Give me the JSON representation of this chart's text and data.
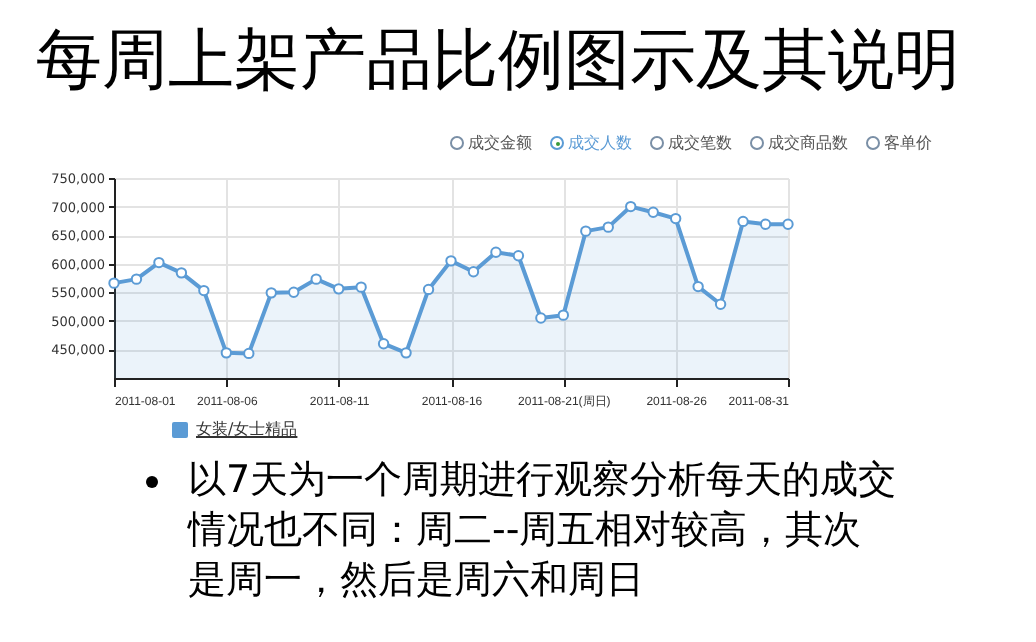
{
  "chart_data": {
    "type": "area",
    "title": "每周上架产品比例图示及其说明",
    "x": [
      "2011-08-01",
      "2011-08-02",
      "2011-08-03",
      "2011-08-04",
      "2011-08-05",
      "2011-08-06",
      "2011-08-07",
      "2011-08-08",
      "2011-08-09",
      "2011-08-10",
      "2011-08-11",
      "2011-08-12",
      "2011-08-13",
      "2011-08-14",
      "2011-08-15",
      "2011-08-16",
      "2011-08-17",
      "2011-08-18",
      "2011-08-19",
      "2011-08-20",
      "2011-08-21",
      "2011-08-22",
      "2011-08-23",
      "2011-08-24",
      "2011-08-25",
      "2011-08-26",
      "2011-08-27",
      "2011-08-28",
      "2011-08-29",
      "2011-08-30",
      "2011-08-31"
    ],
    "series": [
      {
        "name": "成交人数",
        "color": "#5b9bd5",
        "values": [
          566000,
          573000,
          602000,
          584000,
          553000,
          444000,
          443000,
          549000,
          550000,
          573000,
          556000,
          559000,
          460000,
          444000,
          555000,
          605000,
          586000,
          620000,
          614000,
          505000,
          510000,
          657000,
          664000,
          700000,
          690000,
          679000,
          560000,
          529000,
          674000,
          669000,
          669000
        ]
      }
    ],
    "xlim": [
      "2011-08-01",
      "2011-08-31"
    ],
    "xticks": [
      {
        "value": "2011-08-01",
        "label": "2011-08-01"
      },
      {
        "value": "2011-08-06",
        "label": "2011-08-06"
      },
      {
        "value": "2011-08-11",
        "label": "2011-08-11"
      },
      {
        "value": "2011-08-16",
        "label": "2011-08-16"
      },
      {
        "value": "2011-08-21",
        "label": "2011-08-21(周日)"
      },
      {
        "value": "2011-08-26",
        "label": "2011-08-26"
      },
      {
        "value": "2011-08-31",
        "label": "2011-08-31"
      }
    ],
    "ylim": [
      400000,
      750000
    ],
    "yticks": [
      {
        "value": 450000,
        "label": "450,000"
      },
      {
        "value": 500000,
        "label": "500,000"
      },
      {
        "value": 550000,
        "label": "550,000"
      },
      {
        "value": 600000,
        "label": "600,000"
      },
      {
        "value": 650000,
        "label": "650,000"
      },
      {
        "value": 700000,
        "label": "700,000"
      },
      {
        "value": 750000,
        "label": "750,000"
      }
    ],
    "grid": true,
    "legend": "top right",
    "marker": "circle",
    "annotations": [
      "成交金额",
      "成交笔数",
      "成交商品数",
      "客单价",
      "女装/女士精品",
      "以7天为一个周期进行观察分析每天的成交情况也不同：周二--周五相对较高，其次是周一，然后是周六和周日"
    ]
  }
}
